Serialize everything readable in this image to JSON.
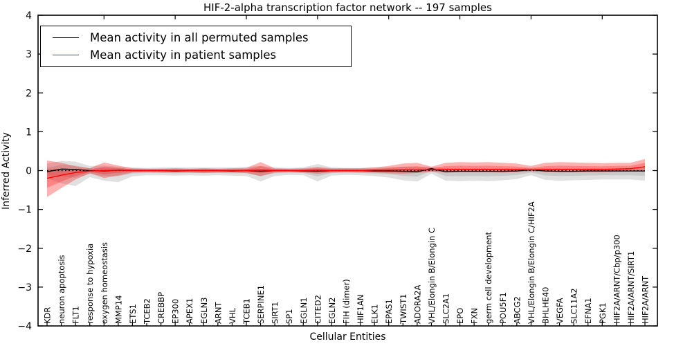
{
  "figure": {
    "title": "HIF-2-alpha transcription factor network -- 197 samples",
    "xlabel": "Cellular Entities",
    "ylabel": "Inferred Activity"
  },
  "legend": {
    "items": [
      {
        "label": "Mean activity in all permuted samples",
        "color": "#000000"
      },
      {
        "label": "Mean activity in patient samples",
        "color": "#ff0000"
      }
    ]
  },
  "chart_data": {
    "type": "line",
    "title": "HIF-2-alpha transcription factor network -- 197 samples",
    "xlabel": "Cellular Entities",
    "ylabel": "Inferred Activity",
    "ylim": [
      -4,
      4
    ],
    "yticks": [
      -4,
      -3,
      -2,
      -1,
      0,
      1,
      2,
      3,
      4
    ],
    "ytick_labels": [
      "−4",
      "−3",
      "−2",
      "−1",
      "0",
      "1",
      "2",
      "3",
      "4"
    ],
    "grid": false,
    "legend_position": "upper left",
    "x_major_tick_every": 5,
    "categories": [
      "KDR",
      "neuron apoptosis",
      "FLT1",
      "response to hypoxia",
      "oxygen homeostasis",
      "MMP14",
      "ETS1",
      "TCEB2",
      "CREBBP",
      "EP300",
      "APEX1",
      "EGLN3",
      "ARNT",
      "VHL",
      "TCEB1",
      "SERPINE1",
      "SIRT1",
      "SP1",
      "EGLN1",
      "CITED2",
      "EGLN2",
      "FIH (dimer)",
      "HIF1AN",
      "ELK1",
      "EPAS1",
      "TWIST1",
      "ADORA2A",
      "VHL/Elongin B/Elongin C",
      "SLC2A1",
      "EPO",
      "FXN",
      "germ cell development",
      "POU5F1",
      "ABCG2",
      "VHL/Elongin B/Elongin C/HIF2A",
      "BHLHE40",
      "VEGFA",
      "SLC11A2",
      "EFNA1",
      "PGK1",
      "HIF2A/ARNT/Cbp/p300",
      "HIF2A/ARNT/SIRT1",
      "HIF2A/ARNT"
    ],
    "series": [
      {
        "name": "Mean activity in all permuted samples",
        "color": "#000000",
        "style": "solid",
        "values": [
          -0.03,
          0.04,
          0.03,
          0.0,
          -0.01,
          0.01,
          0.0,
          0.0,
          0.0,
          -0.01,
          0.0,
          0.0,
          0.0,
          -0.01,
          0.0,
          -0.02,
          0.0,
          0.0,
          -0.01,
          -0.02,
          0.0,
          0.0,
          0.0,
          -0.01,
          -0.01,
          -0.02,
          -0.03,
          0.05,
          -0.03,
          -0.02,
          -0.02,
          -0.02,
          -0.02,
          -0.01,
          0.02,
          -0.01,
          -0.02,
          -0.02,
          -0.01,
          -0.01,
          -0.01,
          -0.01,
          -0.01
        ]
      },
      {
        "name": "Mean activity in patient samples",
        "color": "#ff0000",
        "style": "solid",
        "values": [
          -0.2,
          -0.12,
          -0.05,
          -0.01,
          0.0,
          0.01,
          0.0,
          0.0,
          0.0,
          0.0,
          0.0,
          0.0,
          0.0,
          0.0,
          0.0,
          0.01,
          0.0,
          0.0,
          0.0,
          0.01,
          0.0,
          0.0,
          0.0,
          0.01,
          0.01,
          0.02,
          0.02,
          0.02,
          0.03,
          0.03,
          0.03,
          0.03,
          0.03,
          0.03,
          0.02,
          0.03,
          0.03,
          0.03,
          0.03,
          0.03,
          0.04,
          0.05,
          0.1
        ]
      },
      {
        "name": "zero reference",
        "color": "#000000",
        "style": "dotted",
        "constant": 0
      }
    ],
    "bands": [
      {
        "name": "permuted samples spread",
        "color": "#000000",
        "opacity": 0.12,
        "inner_opacity": 0.1,
        "mean_series": 0,
        "lower": [
          -0.2,
          -0.33,
          -0.4,
          -0.17,
          -0.26,
          -0.3,
          -0.15,
          -0.12,
          -0.12,
          -0.13,
          -0.12,
          -0.13,
          -0.12,
          -0.13,
          -0.14,
          -0.28,
          -0.14,
          -0.11,
          -0.12,
          -0.28,
          -0.13,
          -0.11,
          -0.12,
          -0.14,
          -0.18,
          -0.25,
          -0.28,
          -0.08,
          -0.26,
          -0.27,
          -0.26,
          -0.27,
          -0.25,
          -0.22,
          -0.12,
          -0.24,
          -0.26,
          -0.25,
          -0.24,
          -0.23,
          -0.23,
          -0.23,
          -0.26
        ],
        "upper": [
          0.18,
          0.25,
          0.23,
          0.12,
          0.13,
          0.1,
          0.08,
          0.07,
          0.08,
          0.08,
          0.08,
          0.08,
          0.08,
          0.08,
          0.09,
          0.12,
          0.08,
          0.07,
          0.08,
          0.17,
          0.08,
          0.07,
          0.07,
          0.08,
          0.09,
          0.1,
          0.1,
          0.1,
          0.06,
          0.06,
          0.06,
          0.06,
          0.06,
          0.06,
          0.06,
          0.06,
          0.06,
          0.06,
          0.06,
          0.06,
          0.06,
          0.06,
          0.08
        ]
      },
      {
        "name": "patient samples spread",
        "color": "#ff0000",
        "opacity": 0.3,
        "inner_opacity": 0.25,
        "mean_series": 1,
        "lower": [
          -0.68,
          -0.45,
          -0.23,
          -0.07,
          -0.19,
          -0.13,
          -0.05,
          -0.04,
          -0.05,
          -0.05,
          -0.05,
          -0.06,
          -0.05,
          -0.05,
          -0.06,
          -0.14,
          -0.05,
          -0.04,
          -0.05,
          -0.08,
          -0.05,
          -0.04,
          -0.05,
          -0.05,
          -0.07,
          -0.08,
          -0.06,
          -0.03,
          -0.05,
          -0.04,
          -0.04,
          -0.04,
          -0.05,
          -0.04,
          -0.02,
          -0.04,
          -0.04,
          -0.04,
          -0.04,
          -0.04,
          -0.03,
          -0.02,
          -0.02
        ],
        "upper": [
          0.26,
          0.2,
          0.11,
          0.06,
          0.21,
          0.13,
          0.06,
          0.05,
          0.05,
          0.06,
          0.05,
          0.06,
          0.05,
          0.06,
          0.07,
          0.22,
          0.06,
          0.05,
          0.06,
          0.09,
          0.06,
          0.06,
          0.06,
          0.08,
          0.12,
          0.18,
          0.2,
          0.1,
          0.2,
          0.22,
          0.21,
          0.22,
          0.2,
          0.18,
          0.12,
          0.2,
          0.22,
          0.21,
          0.2,
          0.19,
          0.2,
          0.2,
          0.3
        ]
      }
    ]
  }
}
